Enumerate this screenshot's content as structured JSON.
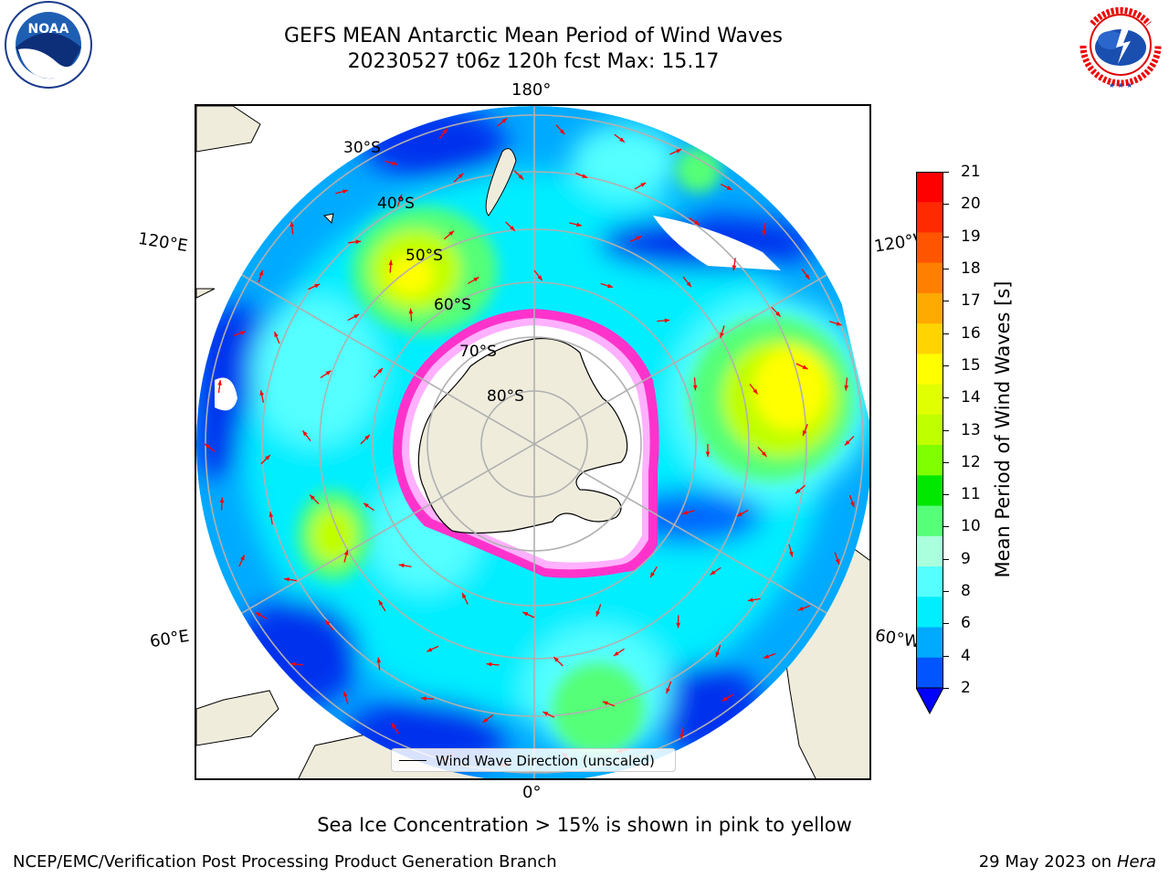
{
  "title_line1": "GEFS MEAN Antarctic Mean Period of Wind Waves",
  "title_line2": "20230527 t06z 120h fcst   Max: 15.17",
  "map": {
    "longitude_labels": {
      "top": "180°",
      "bottom": "0°",
      "left_upper": "120°E",
      "left_lower": "60°E",
      "right_upper": "120°W",
      "right_lower": "60°W"
    },
    "latitude_labels": [
      "30°S",
      "40°S",
      "50°S",
      "60°S",
      "70°S",
      "80°S"
    ],
    "land_color": "#efecdc",
    "grid_color": "#b0b0b0",
    "ice_edge_colors": [
      "#ff33cc",
      "#ffb0ff",
      "#ffd700"
    ],
    "arrow_color": "#ff0000"
  },
  "legend": {
    "label": "Wind Wave Direction (unscaled)"
  },
  "colorbar": {
    "label": "Mean Period of Wind Waves [s]",
    "ticks": [
      "21",
      "20",
      "19",
      "18",
      "17",
      "16",
      "15",
      "14",
      "13",
      "12",
      "11",
      "10",
      "9",
      "8",
      "6",
      "4",
      "2"
    ],
    "colors": [
      "#ff0000",
      "#ff2a00",
      "#ff5500",
      "#ff7f00",
      "#ffaa00",
      "#ffd400",
      "#ffff00",
      "#e0ff00",
      "#c0ff00",
      "#80ff00",
      "#00e800",
      "#55ff77",
      "#aaffdd",
      "#55ffff",
      "#00eeff",
      "#00aaff",
      "#0055ff"
    ],
    "extend_color": "#0000ff"
  },
  "footnote": "Sea Ice Concentration > 15% is shown in pink to yellow",
  "footer_left": "NCEP/EMC/Verification Post Processing Product Generation Branch",
  "footer_right_date": "29 May 2023 on",
  "footer_right_host": "Hera",
  "logos": {
    "left": "NOAA",
    "right": "NATIONAL WEATHER SERVICE"
  }
}
